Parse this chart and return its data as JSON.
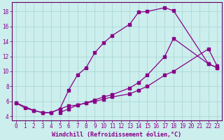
{
  "xlabel": "Windchill (Refroidissement éolien,°C)",
  "bg_color": "#cceeed",
  "grid_color": "#aad8d6",
  "line_color": "#880088",
  "spine_color": "#660066",
  "xlim": [
    -0.5,
    23.5
  ],
  "ylim": [
    3.5,
    19.2
  ],
  "yticks": [
    4,
    6,
    8,
    10,
    12,
    14,
    16,
    18
  ],
  "xticks": [
    0,
    1,
    2,
    3,
    4,
    5,
    6,
    7,
    8,
    9,
    10,
    11,
    12,
    13,
    14,
    15,
    16,
    17,
    18,
    19,
    20,
    21,
    22,
    23
  ],
  "curve1_x": [
    0,
    1,
    2,
    3,
    4,
    5,
    6,
    7,
    8,
    9,
    10,
    11,
    13,
    14,
    15,
    17,
    18,
    22,
    23
  ],
  "curve1_y": [
    5.8,
    5.1,
    4.8,
    4.5,
    4.5,
    5.0,
    7.5,
    9.5,
    10.5,
    12.5,
    13.8,
    14.8,
    16.3,
    17.9,
    18.0,
    18.5,
    18.1,
    11.0,
    10.5
  ],
  "curve2_x": [
    0,
    2,
    3,
    4,
    5,
    6,
    7,
    8,
    9,
    10,
    11,
    13,
    14,
    15,
    17,
    18,
    22,
    23
  ],
  "curve2_y": [
    5.8,
    4.8,
    4.5,
    4.5,
    5.0,
    5.4,
    5.5,
    5.8,
    6.0,
    6.3,
    6.6,
    7.0,
    7.5,
    8.0,
    9.5,
    10.0,
    13.0,
    10.7
  ],
  "curve3_x": [
    5,
    6,
    7,
    8,
    9,
    10,
    11,
    13,
    14,
    15,
    17,
    18,
    22,
    23
  ],
  "curve3_y": [
    4.5,
    5.0,
    5.5,
    5.8,
    6.2,
    6.6,
    6.9,
    7.8,
    8.5,
    9.5,
    12.0,
    14.4,
    11.0,
    10.5
  ],
  "tick_fontsize": 5.5,
  "xlabel_fontsize": 6.0,
  "marker_size": 2.5,
  "line_width": 0.9
}
